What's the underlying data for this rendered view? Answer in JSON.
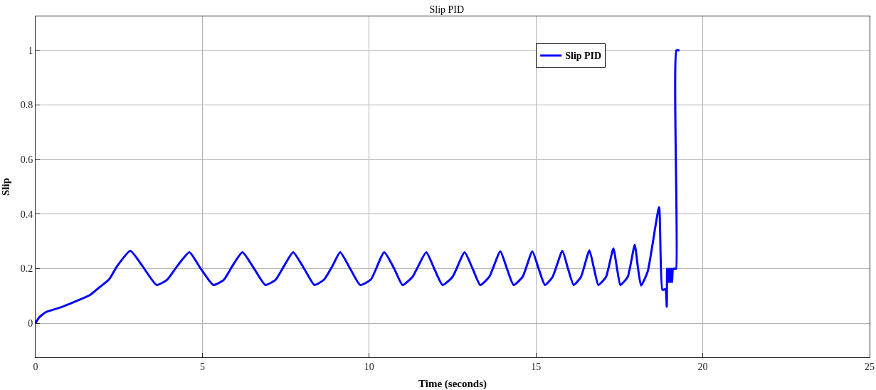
{
  "chart_data": {
    "type": "line",
    "title": "Slip PID",
    "xlabel": "Time (seconds)",
    "ylabel": "Slip",
    "xlim": [
      0,
      25
    ],
    "xticks": [
      0,
      5,
      10,
      15,
      20,
      25
    ],
    "ylim": [
      -0.125,
      1.125
    ],
    "yticks": [
      0,
      0.2,
      0.4,
      0.6,
      0.8,
      1
    ],
    "grid": true,
    "legend": "top right",
    "line_style": "solid",
    "series": [
      {
        "name": "Slip PID",
        "color": "#0000ff",
        "x": [
          0,
          0.1,
          0.3,
          0.8,
          1.64,
          1.9,
          2.2,
          2.45,
          2.84,
          3.2,
          3.63,
          3.95,
          4.25,
          4.61,
          4.95,
          5.33,
          5.65,
          5.9,
          6.2,
          6.55,
          6.89,
          7.2,
          7.45,
          7.72,
          8.05,
          8.36,
          8.65,
          8.9,
          9.13,
          9.43,
          9.73,
          10.05,
          10.45,
          10.75,
          11.0,
          11.3,
          11.71,
          11.95,
          12.2,
          12.5,
          12.86,
          13.1,
          13.33,
          13.6,
          13.93,
          14.13,
          14.33,
          14.6,
          14.89,
          15.08,
          15.27,
          15.5,
          15.79,
          15.96,
          16.13,
          16.35,
          16.6,
          16.74,
          16.87,
          17.1,
          17.32,
          17.43,
          17.53,
          17.75,
          17.96,
          18.06,
          18.15,
          18.35,
          18.69,
          18.79,
          18.88,
          18.92,
          18.93,
          18.96,
          18.99,
          19.02,
          19.05,
          19.08,
          19.11,
          19.16,
          19.2,
          19.21,
          19.3
        ],
        "values": [
          0,
          0.02,
          0.04,
          0.06,
          0.104,
          0.13,
          0.16,
          0.21,
          0.265,
          0.21,
          0.14,
          0.16,
          0.21,
          0.26,
          0.2,
          0.14,
          0.16,
          0.21,
          0.26,
          0.2,
          0.14,
          0.16,
          0.21,
          0.26,
          0.2,
          0.14,
          0.16,
          0.21,
          0.26,
          0.2,
          0.14,
          0.16,
          0.26,
          0.2,
          0.14,
          0.17,
          0.26,
          0.2,
          0.14,
          0.17,
          0.26,
          0.2,
          0.14,
          0.17,
          0.263,
          0.2,
          0.14,
          0.17,
          0.263,
          0.2,
          0.14,
          0.17,
          0.265,
          0.2,
          0.14,
          0.17,
          0.267,
          0.2,
          0.14,
          0.17,
          0.274,
          0.2,
          0.14,
          0.17,
          0.287,
          0.2,
          0.138,
          0.19,
          0.425,
          0.122,
          0.125,
          0.06,
          0.2,
          0.15,
          0.2,
          0.15,
          0.2,
          0.15,
          0.2,
          0.2,
          0.2,
          1,
          1
        ]
      }
    ]
  }
}
